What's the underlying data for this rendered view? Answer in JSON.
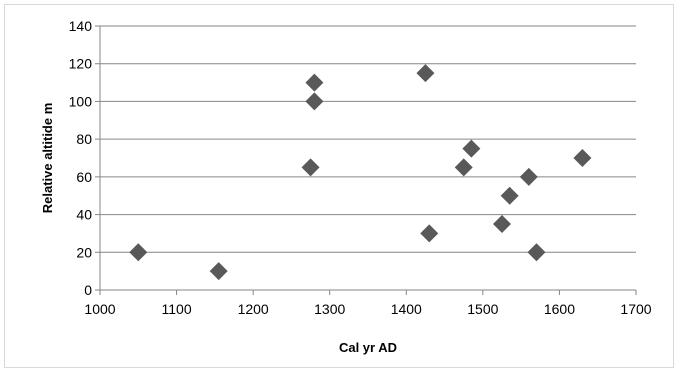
{
  "chart_data": {
    "type": "scatter",
    "title": "",
    "xlabel": "Cal yr AD",
    "ylabel": "Relative altitide m",
    "xlim": [
      1000,
      1700
    ],
    "ylim": [
      0,
      140
    ],
    "x_ticks": [
      1000,
      1100,
      1200,
      1300,
      1400,
      1500,
      1600,
      1700
    ],
    "y_ticks": [
      0,
      20,
      40,
      60,
      80,
      100,
      120,
      140
    ],
    "grid": "horizontal major gridlines",
    "legend": "none",
    "marker": "diamond",
    "marker_color": "#595959",
    "series": [
      {
        "points": [
          {
            "x": 1050,
            "y": 20
          },
          {
            "x": 1155,
            "y": 10
          },
          {
            "x": 1275,
            "y": 65
          },
          {
            "x": 1280,
            "y": 100
          },
          {
            "x": 1280,
            "y": 110
          },
          {
            "x": 1425,
            "y": 115
          },
          {
            "x": 1430,
            "y": 30
          },
          {
            "x": 1475,
            "y": 65
          },
          {
            "x": 1485,
            "y": 75
          },
          {
            "x": 1525,
            "y": 35
          },
          {
            "x": 1535,
            "y": 50
          },
          {
            "x": 1560,
            "y": 60
          },
          {
            "x": 1570,
            "y": 20
          },
          {
            "x": 1630,
            "y": 70
          }
        ]
      }
    ]
  }
}
